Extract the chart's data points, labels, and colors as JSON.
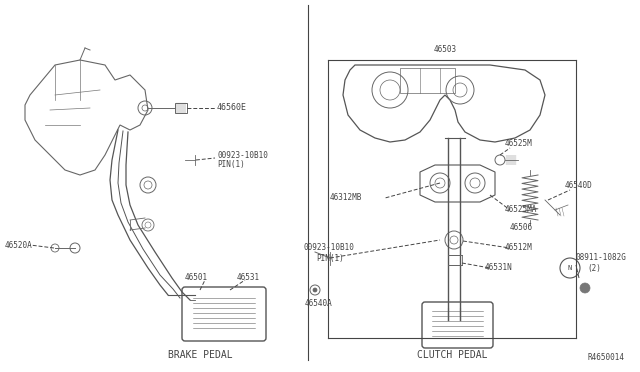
{
  "bg_color": "#ffffff",
  "line_color": "#444444",
  "text_color": "#444444",
  "fig_width": 6.4,
  "fig_height": 3.72,
  "dpi": 100,
  "brake_label": "BRAKE PEDAL",
  "clutch_label": "CLUTCH PEDAL",
  "ref_number": "R4650014"
}
